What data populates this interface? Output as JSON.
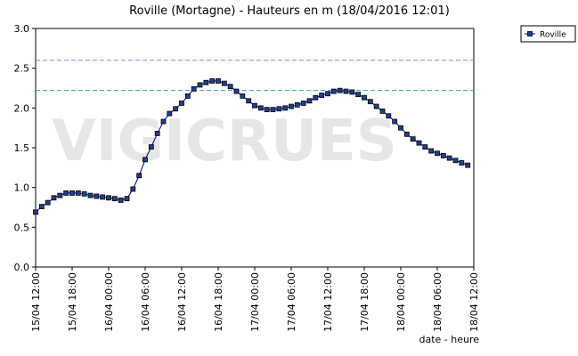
{
  "chart_data": {
    "type": "line",
    "title": "Roville (Mortagne) - Hauteurs en m (18/04/2016 12:01)",
    "x_label": "date - heure",
    "watermark": "VIGICRUES",
    "legend_position": "right",
    "x": [
      "15/04 12:00",
      "15/04 13:00",
      "15/04 14:00",
      "15/04 15:00",
      "15/04 16:00",
      "15/04 17:00",
      "15/04 18:00",
      "15/04 19:00",
      "15/04 20:00",
      "15/04 21:00",
      "15/04 22:00",
      "15/04 23:00",
      "16/04 00:00",
      "16/04 01:00",
      "16/04 02:00",
      "16/04 03:00",
      "16/04 04:00",
      "16/04 05:00",
      "16/04 06:00",
      "16/04 07:00",
      "16/04 08:00",
      "16/04 09:00",
      "16/04 10:00",
      "16/04 11:00",
      "16/04 12:00",
      "16/04 13:00",
      "16/04 14:00",
      "16/04 15:00",
      "16/04 16:00",
      "16/04 17:00",
      "16/04 18:00",
      "16/04 19:00",
      "16/04 20:00",
      "16/04 21:00",
      "16/04 22:00",
      "16/04 23:00",
      "17/04 00:00",
      "17/04 01:00",
      "17/04 02:00",
      "17/04 03:00",
      "17/04 04:00",
      "17/04 05:00",
      "17/04 06:00",
      "17/04 07:00",
      "17/04 08:00",
      "17/04 09:00",
      "17/04 10:00",
      "17/04 11:00",
      "17/04 12:00",
      "17/04 13:00",
      "17/04 14:00",
      "17/04 15:00",
      "17/04 16:00",
      "17/04 17:00",
      "17/04 18:00",
      "17/04 19:00",
      "17/04 20:00",
      "17/04 21:00",
      "17/04 22:00",
      "17/04 23:00",
      "18/04 00:00",
      "18/04 01:00",
      "18/04 02:00",
      "18/04 03:00",
      "18/04 04:00",
      "18/04 05:00",
      "18/04 06:00",
      "18/04 07:00",
      "18/04 08:00",
      "18/04 09:00",
      "18/04 10:00",
      "18/04 11:00"
    ],
    "series": [
      {
        "name": "Roville",
        "color": "#1f3f8f",
        "line_color": "#00006a",
        "values": [
          0.69,
          0.76,
          0.81,
          0.87,
          0.9,
          0.93,
          0.93,
          0.93,
          0.92,
          0.9,
          0.89,
          0.88,
          0.87,
          0.86,
          0.84,
          0.86,
          0.98,
          1.15,
          1.35,
          1.51,
          1.68,
          1.83,
          1.93,
          1.99,
          2.06,
          2.15,
          2.24,
          2.29,
          2.32,
          2.34,
          2.34,
          2.31,
          2.27,
          2.21,
          2.15,
          2.09,
          2.03,
          2.0,
          1.98,
          1.98,
          1.99,
          2.0,
          2.02,
          2.04,
          2.06,
          2.09,
          2.13,
          2.16,
          2.18,
          2.21,
          2.22,
          2.21,
          2.2,
          2.17,
          2.13,
          2.08,
          2.02,
          1.96,
          1.9,
          1.83,
          1.75,
          1.67,
          1.61,
          1.56,
          1.51,
          1.46,
          1.43,
          1.4,
          1.37,
          1.34,
          1.31,
          1.28
        ]
      }
    ],
    "reference_lines": [
      {
        "value": 2.6,
        "color": "#8a8ae8"
      },
      {
        "value": 2.22,
        "color": "#2f9fcf"
      }
    ],
    "xlim": [
      "15/04 12:00",
      "18/04 12:00"
    ],
    "xticks": [
      "15/04 12:00",
      "15/04 18:00",
      "16/04 00:00",
      "16/04 06:00",
      "16/04 12:00",
      "16/04 18:00",
      "17/04 00:00",
      "17/04 06:00",
      "17/04 12:00",
      "17/04 18:00",
      "18/04 00:00",
      "18/04 06:00",
      "18/04 12:00"
    ],
    "ylim": [
      0,
      3
    ],
    "yticks": [
      {
        "value": 0,
        "label": "0.0"
      },
      0.5,
      {
        "value": 1,
        "label": "1.0"
      },
      1.5,
      {
        "value": 2,
        "label": "2.0"
      },
      2.5,
      {
        "value": 3,
        "label": "3.0"
      }
    ]
  }
}
